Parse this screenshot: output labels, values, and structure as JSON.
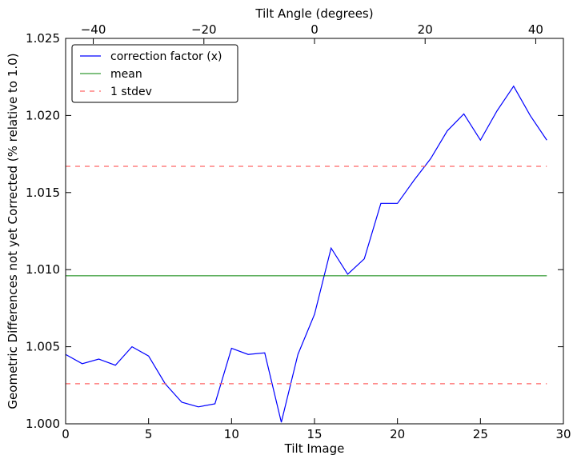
{
  "chart_data": {
    "type": "line",
    "xlabel": "Tilt Image",
    "ylabel": "Geometric Differences not yet Corrected (% relative to 1.0)",
    "top_xlabel": "Tilt Angle (degrees)",
    "xlim": [
      0,
      30
    ],
    "ylim": [
      1.0,
      1.025
    ],
    "top_xlim": [
      -45,
      45
    ],
    "x_ticks": [
      0,
      5,
      10,
      15,
      20,
      25,
      30
    ],
    "x_tick_labels": [
      "0",
      "5",
      "10",
      "15",
      "20",
      "25",
      "30"
    ],
    "y_ticks": [
      1.0,
      1.005,
      1.01,
      1.015,
      1.02,
      1.025
    ],
    "y_tick_labels": [
      "1.000",
      "1.005",
      "1.010",
      "1.015",
      "1.020",
      "1.025"
    ],
    "top_x_ticks": [
      -40,
      -20,
      0,
      20,
      40
    ],
    "top_x_tick_labels": [
      "−40",
      "−20",
      "0",
      "20",
      "40"
    ],
    "grid": false,
    "legend_position": "top-left",
    "series": [
      {
        "name": "correction factor (x)",
        "color": "#0000ff",
        "style": "solid",
        "x": [
          0,
          1,
          2,
          3,
          4,
          5,
          6,
          7,
          8,
          9,
          10,
          11,
          12,
          13,
          14,
          15,
          16,
          17,
          18,
          19,
          20,
          21,
          22,
          23,
          24,
          25,
          26,
          27,
          28,
          29
        ],
        "y": [
          1.0045,
          1.0039,
          1.0042,
          1.0038,
          1.005,
          1.0044,
          1.0026,
          1.0014,
          1.0011,
          1.0013,
          1.0049,
          1.0045,
          1.0046,
          1.0001,
          1.0045,
          1.0071,
          1.0114,
          1.0097,
          1.0107,
          1.0143,
          1.0143,
          1.0158,
          1.0172,
          1.019,
          1.0201,
          1.0184,
          1.0203,
          1.0219,
          1.02,
          1.0184
        ]
      },
      {
        "name": "mean",
        "color": "#008000",
        "style": "solid",
        "x": [
          0,
          29
        ],
        "y": [
          1.0096,
          1.0096
        ]
      },
      {
        "name": "1 stdev",
        "color": "#ff6666",
        "style": "dashed",
        "x": [
          0,
          29
        ],
        "y": [
          1.0167,
          1.0167
        ]
      },
      {
        "name": "",
        "color": "#ff6666",
        "style": "dashed",
        "x": [
          0,
          29
        ],
        "y": [
          1.0026,
          1.0026
        ]
      }
    ]
  }
}
